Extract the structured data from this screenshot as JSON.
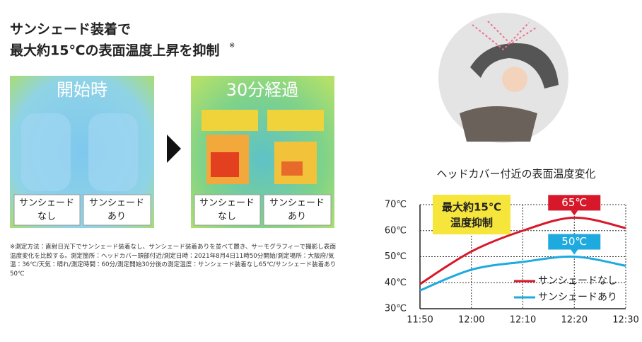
{
  "header": {
    "title_lines": [
      "サンシェード装着で",
      "最大約15℃の表面温度上昇を抑制"
    ],
    "note_mark": "※"
  },
  "images": [
    {
      "label": "開始時",
      "tags": [
        [
          "サンシェード",
          "なし"
        ],
        [
          "サンシェード",
          "あり"
        ]
      ]
    },
    {
      "label": "30分経過",
      "tags": [
        [
          "サンシェード",
          "なし"
        ],
        [
          "サンシェード",
          "あり"
        ]
      ]
    }
  ],
  "footnote": "※測定方法：直射日光下でサンシェード装着なし、サンシェード装着ありを並べて置き、サーモグラフィーで撮影し表面温度変化を比較する。測定箇所：ヘッドカバー頭部付近/測定日時：2021年8月4日11時50分開始/測定場所：大阪府/気温：36℃/天気：晴れ/測定時間：60分/測定開始30分後の測定温度：サンシェード装着なし65℃/サンシェード装着あり50℃",
  "chart_data": {
    "type": "line",
    "title": "ヘッドカバー付近の表面温度変化",
    "categories": [
      "11:50",
      "12:00",
      "12:10",
      "12:20",
      "12:30"
    ],
    "series": [
      {
        "name": "サンシェードなし",
        "color": "#d7182a",
        "values": [
          39.5,
          52,
          60,
          65,
          61
        ],
        "value_labels": [
          null,
          null,
          null,
          "65℃",
          null
        ]
      },
      {
        "name": "サンシェードあり",
        "color": "#1eaadf",
        "values": [
          37,
          45,
          48,
          50,
          46.5
        ],
        "value_labels": [
          null,
          null,
          null,
          "50℃",
          null
        ]
      }
    ],
    "ylim": [
      30,
      70
    ],
    "yticks": [
      {
        "value": 30,
        "label": "30℃"
      },
      {
        "value": 40,
        "label": "40℃"
      },
      {
        "value": 50,
        "label": "50℃"
      },
      {
        "value": 60,
        "label": "60℃"
      },
      {
        "value": 70,
        "label": "70℃"
      }
    ],
    "grid": true,
    "legend": "lower right",
    "annotation": [
      "最大約15℃",
      "温度抑制"
    ]
  }
}
